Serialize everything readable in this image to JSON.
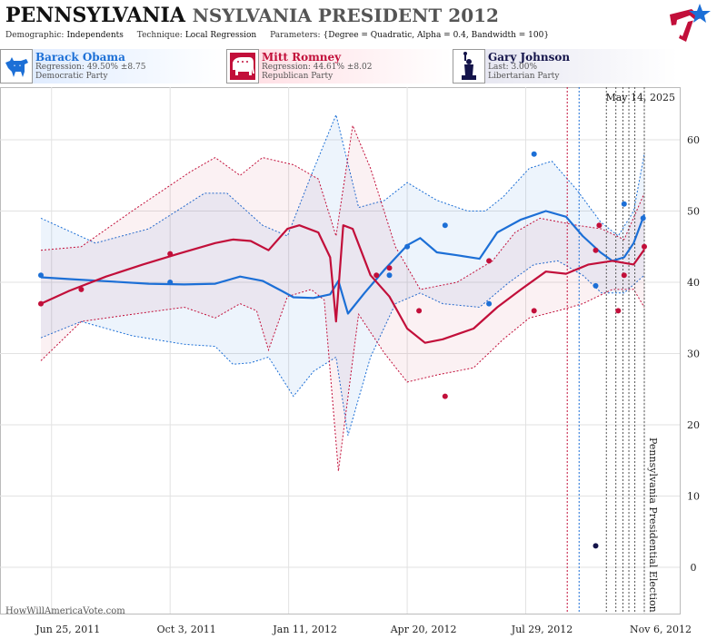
{
  "header": {
    "title_state": "PENNSYLVANIA",
    "title_race": "NSYLVANIA PRESIDENT 2012",
    "demographic_label": "Demographic:",
    "demographic_value": "Independents",
    "technique_label": "Technique:",
    "technique_value": "Local Regression",
    "parameters_label": "Parameters:",
    "parameters_value": "{Degree = Quadratic, Alpha = 0.4, Bandwidth = 100}"
  },
  "candidates": [
    {
      "name": "Barack Obama",
      "stat": "Regression: 49.50% ±8.75",
      "party": "Democratic Party",
      "color": "#1c6fd6",
      "icon": "donkey-icon"
    },
    {
      "name": "Mitt Romney",
      "stat": "Regression: 44.61% ±8.02",
      "party": "Republican Party",
      "color": "#c20f3a",
      "icon": "elephant-icon"
    },
    {
      "name": "Gary Johnson",
      "stat": "Last: 3.00%",
      "party": "Libertarian Party",
      "color": "#14144a",
      "icon": "statue-of-liberty-icon"
    }
  ],
  "colors": {
    "obama": "#1c6fd6",
    "romney": "#c20f3a",
    "johnson": "#14144a"
  },
  "credit": "HowWillAmericaVote.com",
  "chart_data": {
    "type": "line",
    "date_label": "May 14, 2025",
    "event_label": "Pennsylvania Presidential Election",
    "x_range": [
      "2011-06-16",
      "2012-11-06"
    ],
    "x_ticks": [
      {
        "date": "2011-06-25",
        "label": "Jun 25, 2011"
      },
      {
        "date": "2011-10-03",
        "label": "Oct 3, 2011"
      },
      {
        "date": "2012-01-11",
        "label": "Jan 11, 2012"
      },
      {
        "date": "2012-04-20",
        "label": "Apr 20, 2012"
      },
      {
        "date": "2012-07-29",
        "label": "Jul 29, 2012"
      },
      {
        "date": "2012-11-06",
        "label": "Nov 6, 2012"
      }
    ],
    "y_range": [
      -10,
      70
    ],
    "y_ticks": [
      0,
      10,
      20,
      30,
      40,
      50,
      60
    ],
    "grid": true,
    "markers": [
      {
        "date": "2012-09-02",
        "color": "#c20f3a"
      },
      {
        "date": "2012-09-12",
        "color": "#1c6fd6"
      },
      {
        "date": "2012-10-05",
        "color": "#555555"
      },
      {
        "date": "2012-10-13",
        "color": "#555555"
      },
      {
        "date": "2012-10-19",
        "color": "#555555"
      },
      {
        "date": "2012-10-24",
        "color": "#555555"
      },
      {
        "date": "2012-10-29",
        "color": "#555555"
      },
      {
        "date": "2012-11-06",
        "color": "#555555"
      }
    ],
    "series": [
      {
        "name": "Barack Obama",
        "color": "#1c6fd6",
        "fill": "rgba(28,111,214,0.08)",
        "line": [
          [
            "2011-06-16",
            40.7
          ],
          [
            "2011-07-15",
            40.4
          ],
          [
            "2011-08-15",
            40.1
          ],
          [
            "2011-09-15",
            39.8
          ],
          [
            "2011-10-15",
            39.7
          ],
          [
            "2011-11-10",
            39.8
          ],
          [
            "2011-12-01",
            40.8
          ],
          [
            "2011-12-20",
            40.2
          ],
          [
            "2012-01-05",
            38.8
          ],
          [
            "2012-01-15",
            37.9
          ],
          [
            "2012-02-01",
            37.8
          ],
          [
            "2012-02-15",
            38.3
          ],
          [
            "2012-02-22",
            40.2
          ],
          [
            "2012-03-01",
            35.6
          ],
          [
            "2012-03-15",
            38.5
          ],
          [
            "2012-04-01",
            41.8
          ],
          [
            "2012-04-20",
            45.2
          ],
          [
            "2012-05-01",
            46.2
          ],
          [
            "2012-05-15",
            44.2
          ],
          [
            "2012-06-01",
            43.8
          ],
          [
            "2012-06-20",
            43.3
          ],
          [
            "2012-07-05",
            47.0
          ],
          [
            "2012-07-25",
            48.8
          ],
          [
            "2012-08-15",
            50.0
          ],
          [
            "2012-09-01",
            49.2
          ],
          [
            "2012-09-15",
            46.5
          ],
          [
            "2012-09-30",
            44.2
          ],
          [
            "2012-10-10",
            43.0
          ],
          [
            "2012-10-20",
            43.5
          ],
          [
            "2012-10-28",
            45.5
          ],
          [
            "2012-11-06",
            49.5
          ]
        ],
        "upper": [
          [
            "2011-06-16",
            49.0
          ],
          [
            "2011-08-01",
            45.5
          ],
          [
            "2011-09-15",
            47.5
          ],
          [
            "2011-11-01",
            52.5
          ],
          [
            "2011-11-20",
            52.5
          ],
          [
            "2011-12-20",
            48.0
          ],
          [
            "2012-01-10",
            46.5
          ],
          [
            "2012-01-30",
            55.0
          ],
          [
            "2012-02-20",
            63.5
          ],
          [
            "2012-03-10",
            50.5
          ],
          [
            "2012-04-01",
            51.5
          ],
          [
            "2012-04-20",
            54.0
          ],
          [
            "2012-05-15",
            51.5
          ],
          [
            "2012-06-10",
            50.0
          ],
          [
            "2012-06-25",
            50.0
          ],
          [
            "2012-07-10",
            52.0
          ],
          [
            "2012-08-01",
            56.0
          ],
          [
            "2012-08-20",
            57.0
          ],
          [
            "2012-09-10",
            53.0
          ],
          [
            "2012-09-30",
            48.5
          ],
          [
            "2012-10-15",
            46.5
          ],
          [
            "2012-10-28",
            50.0
          ],
          [
            "2012-11-06",
            58.0
          ]
        ],
        "lower": [
          [
            "2011-06-16",
            32.2
          ],
          [
            "2011-07-20",
            34.5
          ],
          [
            "2011-09-01",
            32.5
          ],
          [
            "2011-10-15",
            31.3
          ],
          [
            "2011-11-10",
            31.0
          ],
          [
            "2011-11-25",
            28.5
          ],
          [
            "2011-12-10",
            28.7
          ],
          [
            "2011-12-25",
            29.5
          ],
          [
            "2012-01-15",
            24.0
          ],
          [
            "2012-02-01",
            27.5
          ],
          [
            "2012-02-20",
            29.5
          ],
          [
            "2012-03-01",
            18.5
          ],
          [
            "2012-03-20",
            29.5
          ],
          [
            "2012-04-10",
            37.0
          ],
          [
            "2012-05-01",
            38.5
          ],
          [
            "2012-05-20",
            37.0
          ],
          [
            "2012-06-20",
            36.5
          ],
          [
            "2012-07-15",
            40.0
          ],
          [
            "2012-08-05",
            42.5
          ],
          [
            "2012-08-25",
            43.0
          ],
          [
            "2012-09-15",
            41.0
          ],
          [
            "2012-10-01",
            38.5
          ],
          [
            "2012-10-20",
            38.5
          ],
          [
            "2012-11-06",
            41.0
          ]
        ],
        "points": [
          [
            "2011-06-16",
            41
          ],
          [
            "2011-10-03",
            40
          ],
          [
            "2012-04-05",
            41
          ],
          [
            "2012-04-20",
            45
          ],
          [
            "2012-05-22",
            48
          ],
          [
            "2012-06-28",
            37
          ],
          [
            "2012-08-05",
            58
          ],
          [
            "2012-09-26",
            39.5
          ],
          [
            "2012-10-20",
            51
          ],
          [
            "2012-11-05",
            49
          ]
        ]
      },
      {
        "name": "Mitt Romney",
        "color": "#c20f3a",
        "fill": "rgba(194,15,58,0.06)",
        "line": [
          [
            "2011-06-16",
            37.0
          ],
          [
            "2011-07-10",
            38.8
          ],
          [
            "2011-08-10",
            40.8
          ],
          [
            "2011-09-10",
            42.5
          ],
          [
            "2011-10-10",
            44.0
          ],
          [
            "2011-11-10",
            45.5
          ],
          [
            "2011-11-25",
            46.0
          ],
          [
            "2011-12-10",
            45.8
          ],
          [
            "2011-12-25",
            44.5
          ],
          [
            "2012-01-10",
            47.5
          ],
          [
            "2012-01-20",
            48.0
          ],
          [
            "2012-02-05",
            47.0
          ],
          [
            "2012-02-15",
            43.5
          ],
          [
            "2012-02-20",
            34.5
          ],
          [
            "2012-02-26",
            48.0
          ],
          [
            "2012-03-05",
            47.5
          ],
          [
            "2012-03-20",
            41.0
          ],
          [
            "2012-04-05",
            38.0
          ],
          [
            "2012-04-20",
            33.5
          ],
          [
            "2012-05-05",
            31.5
          ],
          [
            "2012-05-20",
            32.0
          ],
          [
            "2012-06-15",
            33.5
          ],
          [
            "2012-07-05",
            36.5
          ],
          [
            "2012-07-25",
            39.0
          ],
          [
            "2012-08-15",
            41.5
          ],
          [
            "2012-09-01",
            41.2
          ],
          [
            "2012-09-20",
            42.5
          ],
          [
            "2012-10-10",
            43.0
          ],
          [
            "2012-10-28",
            42.5
          ],
          [
            "2012-11-06",
            44.6
          ]
        ],
        "upper": [
          [
            "2011-06-16",
            44.5
          ],
          [
            "2011-07-20",
            45.0
          ],
          [
            "2011-09-01",
            50.0
          ],
          [
            "2011-10-20",
            55.5
          ],
          [
            "2011-11-10",
            57.5
          ],
          [
            "2011-12-01",
            55.0
          ],
          [
            "2011-12-20",
            57.5
          ],
          [
            "2012-01-15",
            56.5
          ],
          [
            "2012-02-05",
            54.5
          ],
          [
            "2012-02-20",
            46.5
          ],
          [
            "2012-03-05",
            62.0
          ],
          [
            "2012-03-20",
            56.0
          ],
          [
            "2012-04-10",
            45.0
          ],
          [
            "2012-05-01",
            39.0
          ],
          [
            "2012-06-01",
            40.0
          ],
          [
            "2012-07-01",
            43.0
          ],
          [
            "2012-07-20",
            47.0
          ],
          [
            "2012-08-10",
            49.0
          ],
          [
            "2012-09-10",
            48.0
          ],
          [
            "2012-10-01",
            47.5
          ],
          [
            "2012-10-20",
            46.0
          ],
          [
            "2012-11-06",
            52.5
          ]
        ],
        "lower": [
          [
            "2011-06-16",
            29.0
          ],
          [
            "2011-07-20",
            34.5
          ],
          [
            "2011-09-01",
            35.5
          ],
          [
            "2011-10-15",
            36.5
          ],
          [
            "2011-11-10",
            35.0
          ],
          [
            "2011-12-01",
            37.0
          ],
          [
            "2011-12-15",
            36.0
          ],
          [
            "2011-12-25",
            30.5
          ],
          [
            "2012-01-10",
            38.0
          ],
          [
            "2012-01-30",
            39.0
          ],
          [
            "2012-02-10",
            37.5
          ],
          [
            "2012-02-22",
            13.5
          ],
          [
            "2012-03-10",
            35.5
          ],
          [
            "2012-04-01",
            30.0
          ],
          [
            "2012-04-20",
            26.0
          ],
          [
            "2012-05-15",
            27.0
          ],
          [
            "2012-06-15",
            28.0
          ],
          [
            "2012-07-10",
            32.0
          ],
          [
            "2012-08-01",
            35.0
          ],
          [
            "2012-08-25",
            36.0
          ],
          [
            "2012-09-15",
            37.0
          ],
          [
            "2012-10-10",
            39.0
          ],
          [
            "2012-10-28",
            39.0
          ],
          [
            "2012-11-06",
            36.5
          ]
        ],
        "points": [
          [
            "2011-06-16",
            37
          ],
          [
            "2011-07-20",
            39
          ],
          [
            "2011-10-03",
            44
          ],
          [
            "2012-03-25",
            41
          ],
          [
            "2012-04-05",
            42
          ],
          [
            "2012-04-30",
            36
          ],
          [
            "2012-05-22",
            24
          ],
          [
            "2012-06-28",
            43
          ],
          [
            "2012-08-05",
            36
          ],
          [
            "2012-09-26",
            44.5
          ],
          [
            "2012-09-29",
            48
          ],
          [
            "2012-10-15",
            36
          ],
          [
            "2012-10-20",
            41
          ],
          [
            "2012-11-06",
            45
          ]
        ]
      },
      {
        "name": "Gary Johnson",
        "color": "#14144a",
        "points": [
          [
            "2012-09-26",
            3
          ]
        ]
      }
    ]
  }
}
